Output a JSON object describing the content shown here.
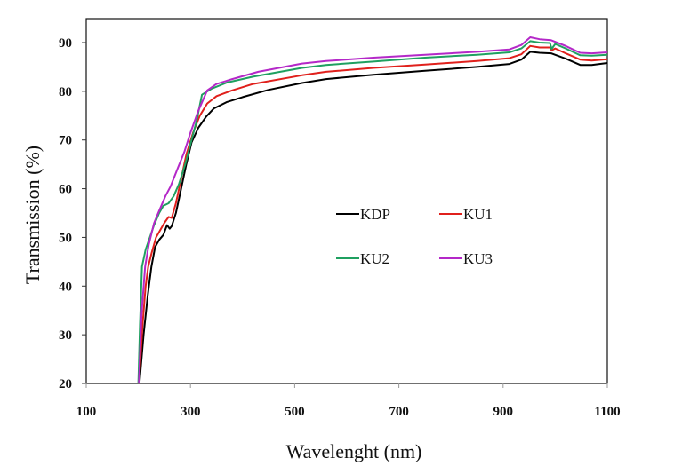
{
  "chart_data": {
    "type": "line",
    "title": "",
    "xlabel": "Wavelenght (nm)",
    "ylabel": "Transmission (%)",
    "xlim": [
      100,
      1100
    ],
    "ylim": [
      20,
      95
    ],
    "xticks": [
      100,
      300,
      500,
      700,
      900,
      1100
    ],
    "yticks": [
      20,
      30,
      40,
      50,
      60,
      70,
      80,
      90
    ],
    "grid": false,
    "legend_position": "center",
    "series": [
      {
        "name": "KDP",
        "color": "#000000",
        "points": [
          [
            202,
            20
          ],
          [
            210,
            30
          ],
          [
            218,
            38
          ],
          [
            225,
            44
          ],
          [
            232,
            48
          ],
          [
            240,
            49.5
          ],
          [
            248,
            50.5
          ],
          [
            255,
            52.5
          ],
          [
            260,
            51.8
          ],
          [
            264,
            52.3
          ],
          [
            272,
            55
          ],
          [
            282,
            60
          ],
          [
            292,
            65
          ],
          [
            302,
            69.5
          ],
          [
            315,
            72.5
          ],
          [
            330,
            74.8
          ],
          [
            345,
            76.5
          ],
          [
            370,
            77.8
          ],
          [
            400,
            78.8
          ],
          [
            450,
            80.3
          ],
          [
            514,
            81.7
          ],
          [
            560,
            82.5
          ],
          [
            651,
            83.4
          ],
          [
            750,
            84.2
          ],
          [
            850,
            85
          ],
          [
            912,
            85.6
          ],
          [
            935,
            86.5
          ],
          [
            952,
            88.1
          ],
          [
            970,
            87.9
          ],
          [
            992,
            87.8
          ],
          [
            1020,
            86.7
          ],
          [
            1048,
            85.4
          ],
          [
            1070,
            85.4
          ],
          [
            1100,
            85.8
          ]
        ]
      },
      {
        "name": "KU1",
        "color": "#e0201c",
        "points": [
          [
            201,
            20
          ],
          [
            208,
            32
          ],
          [
            214,
            40
          ],
          [
            219,
            44
          ],
          [
            226,
            47
          ],
          [
            234,
            50
          ],
          [
            242,
            51.5
          ],
          [
            250,
            53
          ],
          [
            258,
            54.2
          ],
          [
            264,
            54
          ],
          [
            272,
            57
          ],
          [
            282,
            62
          ],
          [
            292,
            67
          ],
          [
            305,
            71.5
          ],
          [
            318,
            75
          ],
          [
            332,
            77.5
          ],
          [
            350,
            79
          ],
          [
            380,
            80.2
          ],
          [
            420,
            81.5
          ],
          [
            514,
            83.3
          ],
          [
            560,
            84
          ],
          [
            651,
            84.8
          ],
          [
            750,
            85.5
          ],
          [
            850,
            86.2
          ],
          [
            912,
            86.8
          ],
          [
            935,
            87.6
          ],
          [
            952,
            89.3
          ],
          [
            970,
            89
          ],
          [
            990,
            89
          ],
          [
            993,
            88.4
          ],
          [
            1000,
            88.8
          ],
          [
            1020,
            87.8
          ],
          [
            1048,
            86.5
          ],
          [
            1070,
            86.3
          ],
          [
            1100,
            86.6
          ]
        ]
      },
      {
        "name": "KU2",
        "color": "#1fa060",
        "points": [
          [
            200,
            20
          ],
          [
            203,
            32
          ],
          [
            207,
            44
          ],
          [
            214,
            47.5
          ],
          [
            222,
            50
          ],
          [
            230,
            52.5
          ],
          [
            240,
            55
          ],
          [
            248,
            56.5
          ],
          [
            258,
            57
          ],
          [
            268,
            58.5
          ],
          [
            278,
            61
          ],
          [
            290,
            65
          ],
          [
            302,
            70
          ],
          [
            312,
            74
          ],
          [
            322,
            79.3
          ],
          [
            340,
            80.5
          ],
          [
            370,
            81.8
          ],
          [
            420,
            83
          ],
          [
            514,
            84.8
          ],
          [
            560,
            85.4
          ],
          [
            651,
            86.1
          ],
          [
            750,
            86.9
          ],
          [
            850,
            87.5
          ],
          [
            912,
            88
          ],
          [
            935,
            88.8
          ],
          [
            952,
            90.3
          ],
          [
            970,
            90
          ],
          [
            990,
            89.9
          ],
          [
            993,
            88.7
          ],
          [
            1000,
            89.7
          ],
          [
            1020,
            88.8
          ],
          [
            1048,
            87.4
          ],
          [
            1070,
            87.3
          ],
          [
            1100,
            87.5
          ]
        ]
      },
      {
        "name": "KU3",
        "color": "#b428c8",
        "points": [
          [
            201,
            20
          ],
          [
            206,
            34
          ],
          [
            213,
            44
          ],
          [
            220,
            48.5
          ],
          [
            230,
            52.9
          ],
          [
            238,
            55
          ],
          [
            244,
            56.5
          ],
          [
            252,
            58.5
          ],
          [
            262,
            60.5
          ],
          [
            276,
            64.3
          ],
          [
            288,
            67.5
          ],
          [
            300,
            71.5
          ],
          [
            315,
            76
          ],
          [
            332,
            80.2
          ],
          [
            350,
            81.5
          ],
          [
            380,
            82.5
          ],
          [
            430,
            84
          ],
          [
            514,
            85.7
          ],
          [
            560,
            86.2
          ],
          [
            651,
            86.9
          ],
          [
            750,
            87.5
          ],
          [
            850,
            88.1
          ],
          [
            912,
            88.6
          ],
          [
            935,
            89.5
          ],
          [
            952,
            91.1
          ],
          [
            970,
            90.7
          ],
          [
            992,
            90.5
          ],
          [
            1020,
            89.3
          ],
          [
            1048,
            87.9
          ],
          [
            1070,
            87.8
          ],
          [
            1100,
            88
          ]
        ]
      }
    ]
  }
}
